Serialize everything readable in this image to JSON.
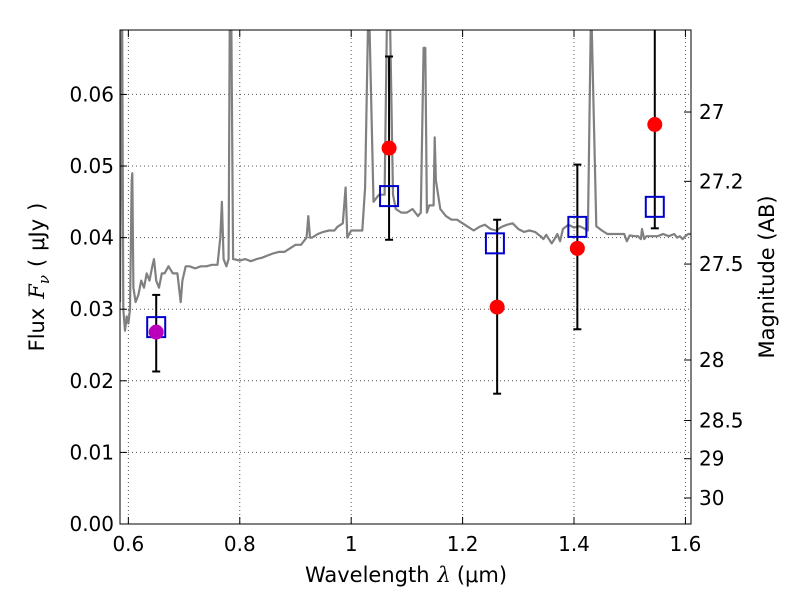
{
  "chart_data": {
    "type": "scatter",
    "title": "",
    "xlabel": {
      "text": "Wavelength",
      "symbol": "λ",
      "unit": "(μm)"
    },
    "ylabel": {
      "text": "Flux",
      "symbol": "F",
      "subscript": "ν",
      "unit_open": "(",
      "unit": "μJy",
      "unit_close": ")"
    },
    "ylabel_right": "Magnitude (AB)",
    "xlim": [
      0.585,
      1.61
    ],
    "ylim": [
      0.0,
      0.069
    ],
    "grid": true,
    "x_ticks": [
      "0.6",
      "0.8",
      "1",
      "1.2",
      "1.4",
      "1.6"
    ],
    "y_ticks": [
      "0.00",
      "0.01",
      "0.02",
      "0.03",
      "0.04",
      "0.05",
      "0.06"
    ],
    "magnitude_ticks": [
      "27",
      "27.2",
      "27.5",
      "28",
      "28.5",
      "29",
      "30"
    ],
    "colors": {
      "spectrum": "#808080",
      "observed": "#ff0000",
      "observed_highlight": "#bb00bb",
      "model_box": "#0000cc",
      "errorbar": "#000000",
      "grid": "#555555"
    },
    "series": [
      {
        "kind": "spectrum",
        "points": [
          [
            0.585,
            0.031
          ],
          [
            0.588,
            0.069
          ],
          [
            0.589,
            0.069
          ],
          [
            0.591,
            0.03
          ],
          [
            0.594,
            0.027
          ],
          [
            0.597,
            0.029
          ],
          [
            0.6,
            0.028
          ],
          [
            0.603,
            0.03
          ],
          [
            0.606,
            0.048
          ],
          [
            0.607,
            0.049
          ],
          [
            0.609,
            0.033
          ],
          [
            0.613,
            0.031
          ],
          [
            0.618,
            0.032
          ],
          [
            0.623,
            0.034
          ],
          [
            0.628,
            0.033
          ],
          [
            0.633,
            0.035
          ],
          [
            0.638,
            0.034
          ],
          [
            0.643,
            0.036
          ],
          [
            0.646,
            0.037
          ],
          [
            0.65,
            0.034
          ],
          [
            0.655,
            0.033
          ],
          [
            0.66,
            0.035
          ],
          [
            0.665,
            0.035
          ],
          [
            0.672,
            0.036
          ],
          [
            0.68,
            0.035
          ],
          [
            0.688,
            0.035
          ],
          [
            0.694,
            0.031
          ],
          [
            0.697,
            0.034
          ],
          [
            0.703,
            0.036
          ],
          [
            0.71,
            0.036
          ],
          [
            0.72,
            0.0357
          ],
          [
            0.73,
            0.036
          ],
          [
            0.74,
            0.036
          ],
          [
            0.75,
            0.0362
          ],
          [
            0.76,
            0.0362
          ],
          [
            0.765,
            0.04
          ],
          [
            0.768,
            0.045
          ],
          [
            0.771,
            0.037
          ],
          [
            0.776,
            0.036
          ],
          [
            0.78,
            0.037
          ],
          [
            0.782,
            0.069
          ],
          [
            0.785,
            0.069
          ],
          [
            0.788,
            0.037
          ],
          [
            0.8,
            0.0368
          ],
          [
            0.81,
            0.037
          ],
          [
            0.82,
            0.0367
          ],
          [
            0.83,
            0.037
          ],
          [
            0.84,
            0.0372
          ],
          [
            0.85,
            0.0375
          ],
          [
            0.86,
            0.0378
          ],
          [
            0.87,
            0.038
          ],
          [
            0.88,
            0.038
          ],
          [
            0.89,
            0.0385
          ],
          [
            0.9,
            0.039
          ],
          [
            0.91,
            0.039
          ],
          [
            0.915,
            0.0395
          ],
          [
            0.92,
            0.04
          ],
          [
            0.923,
            0.043
          ],
          [
            0.926,
            0.04
          ],
          [
            0.93,
            0.04
          ],
          [
            0.94,
            0.0405
          ],
          [
            0.95,
            0.0408
          ],
          [
            0.96,
            0.041
          ],
          [
            0.97,
            0.041
          ],
          [
            0.975,
            0.0415
          ],
          [
            0.985,
            0.042
          ],
          [
            0.99,
            0.047
          ],
          [
            0.993,
            0.04
          ],
          [
            1.0,
            0.041
          ],
          [
            1.01,
            0.041
          ],
          [
            1.02,
            0.041
          ],
          [
            1.025,
            0.047
          ],
          [
            1.03,
            0.069
          ],
          [
            1.033,
            0.069
          ],
          [
            1.04,
            0.045
          ],
          [
            1.05,
            0.046
          ],
          [
            1.06,
            0.046
          ],
          [
            1.064,
            0.069
          ],
          [
            1.07,
            0.069
          ],
          [
            1.075,
            0.046
          ],
          [
            1.08,
            0.044
          ],
          [
            1.09,
            0.0435
          ],
          [
            1.1,
            0.0435
          ],
          [
            1.11,
            0.044
          ],
          [
            1.12,
            0.043
          ],
          [
            1.125,
            0.0435
          ],
          [
            1.13,
            0.0665
          ],
          [
            1.133,
            0.0665
          ],
          [
            1.136,
            0.0435
          ],
          [
            1.14,
            0.0445
          ],
          [
            1.148,
            0.0445
          ],
          [
            1.15,
            0.054
          ],
          [
            1.152,
            0.048
          ],
          [
            1.16,
            0.044
          ],
          [
            1.17,
            0.043
          ],
          [
            1.18,
            0.0425
          ],
          [
            1.19,
            0.0425
          ],
          [
            1.2,
            0.042
          ],
          [
            1.21,
            0.0415
          ],
          [
            1.22,
            0.041
          ],
          [
            1.23,
            0.0415
          ],
          [
            1.24,
            0.0418
          ],
          [
            1.25,
            0.0412
          ],
          [
            1.26,
            0.041
          ],
          [
            1.27,
            0.0415
          ],
          [
            1.28,
            0.0418
          ],
          [
            1.29,
            0.042
          ],
          [
            1.3,
            0.0412
          ],
          [
            1.31,
            0.0408
          ],
          [
            1.32,
            0.041
          ],
          [
            1.33,
            0.0408
          ],
          [
            1.34,
            0.0402
          ],
          [
            1.345,
            0.0398
          ],
          [
            1.35,
            0.0404
          ],
          [
            1.355,
            0.0398
          ],
          [
            1.36,
            0.0392
          ],
          [
            1.365,
            0.0398
          ],
          [
            1.37,
            0.0405
          ],
          [
            1.375,
            0.0395
          ],
          [
            1.38,
            0.0412
          ],
          [
            1.39,
            0.0418
          ],
          [
            1.4,
            0.0414
          ],
          [
            1.41,
            0.0416
          ],
          [
            1.42,
            0.0412
          ],
          [
            1.425,
            0.041
          ],
          [
            1.43,
            0.069
          ],
          [
            1.432,
            0.069
          ],
          [
            1.44,
            0.0416
          ],
          [
            1.45,
            0.041
          ],
          [
            1.46,
            0.0405
          ],
          [
            1.47,
            0.0405
          ],
          [
            1.48,
            0.0405
          ],
          [
            1.49,
            0.0405
          ],
          [
            1.495,
            0.0395
          ],
          [
            1.5,
            0.0403
          ],
          [
            1.51,
            0.0402
          ],
          [
            1.515,
            0.0402
          ],
          [
            1.52,
            0.0398
          ],
          [
            1.522,
            0.0412
          ],
          [
            1.526,
            0.0398
          ],
          [
            1.53,
            0.0402
          ],
          [
            1.54,
            0.0402
          ],
          [
            1.55,
            0.0402
          ],
          [
            1.56,
            0.0405
          ],
          [
            1.57,
            0.0402
          ],
          [
            1.58,
            0.0405
          ],
          [
            1.585,
            0.04
          ],
          [
            1.59,
            0.0402
          ],
          [
            1.595,
            0.0398
          ],
          [
            1.6,
            0.0402
          ],
          [
            1.605,
            0.0405
          ],
          [
            1.61,
            0.0405
          ]
        ]
      },
      {
        "kind": "observed",
        "points": [
          {
            "x": 0.65,
            "y": 0.0268,
            "yerr_low": 0.0213,
            "yerr_high": 0.032,
            "highlight": true
          },
          {
            "x": 1.068,
            "y": 0.0525,
            "yerr_low": 0.0397,
            "yerr_high": 0.0653,
            "highlight": false
          },
          {
            "x": 1.262,
            "y": 0.0303,
            "yerr_low": 0.0182,
            "yerr_high": 0.0425,
            "highlight": false
          },
          {
            "x": 1.406,
            "y": 0.0385,
            "yerr_low": 0.0272,
            "yerr_high": 0.0502,
            "highlight": false
          },
          {
            "x": 1.545,
            "y": 0.0558,
            "yerr_low": 0.0413,
            "yerr_high": 0.069,
            "highlight": false
          }
        ]
      },
      {
        "kind": "model",
        "points": [
          {
            "x": 0.65,
            "y": 0.0275
          },
          {
            "x": 1.068,
            "y": 0.0458
          },
          {
            "x": 1.258,
            "y": 0.0392
          },
          {
            "x": 1.406,
            "y": 0.0415
          },
          {
            "x": 1.545,
            "y": 0.0443
          }
        ]
      }
    ]
  }
}
